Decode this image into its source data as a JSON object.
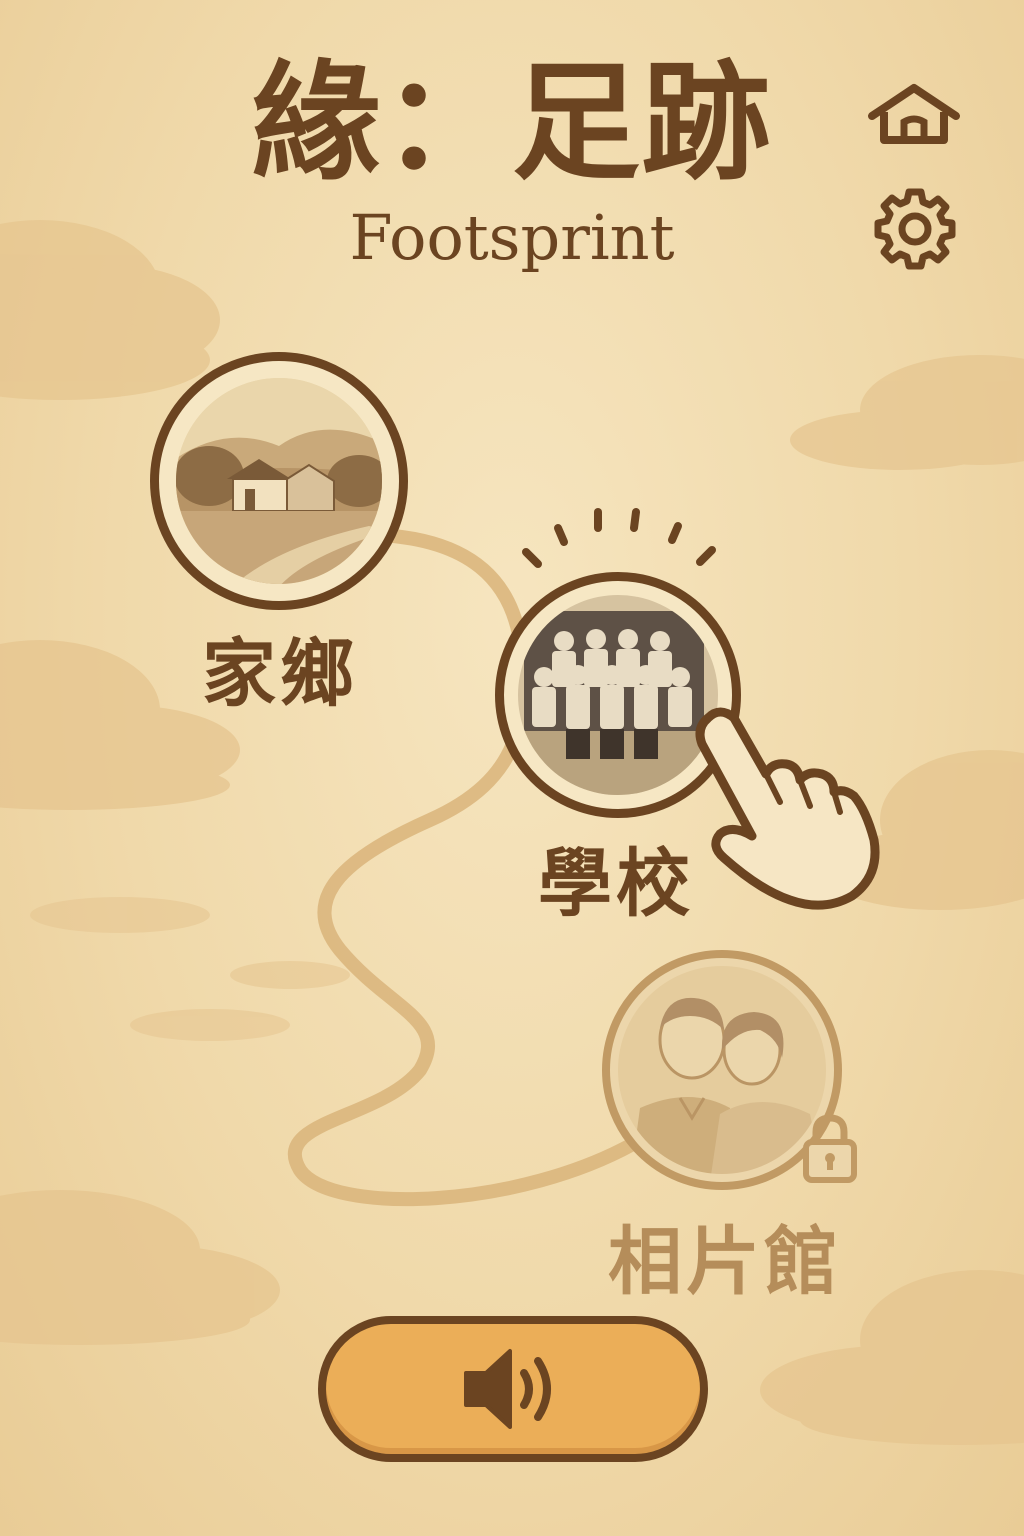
{
  "header": {
    "title": "緣：足跡",
    "subtitle": "Footsprint"
  },
  "toolbar": {
    "home_icon": "home-icon",
    "settings_icon": "gear-icon"
  },
  "map": {
    "nodes": [
      {
        "id": "hometown",
        "label": "家鄉",
        "state": "unlocked",
        "icon": "village-scene"
      },
      {
        "id": "school",
        "label": "學校",
        "state": "active",
        "icon": "class-photo"
      },
      {
        "id": "studio",
        "label": "相片館",
        "state": "locked",
        "icon": "couple-portrait"
      }
    ],
    "pointer_icon": "hand-pointer-icon",
    "lock_icon": "lock-icon"
  },
  "audio": {
    "icon": "speaker-icon"
  },
  "colors": {
    "ink": "#6b4421",
    "parchment": "#f3dfb4",
    "button": "#ebae58",
    "locked": "#b58d5a"
  }
}
